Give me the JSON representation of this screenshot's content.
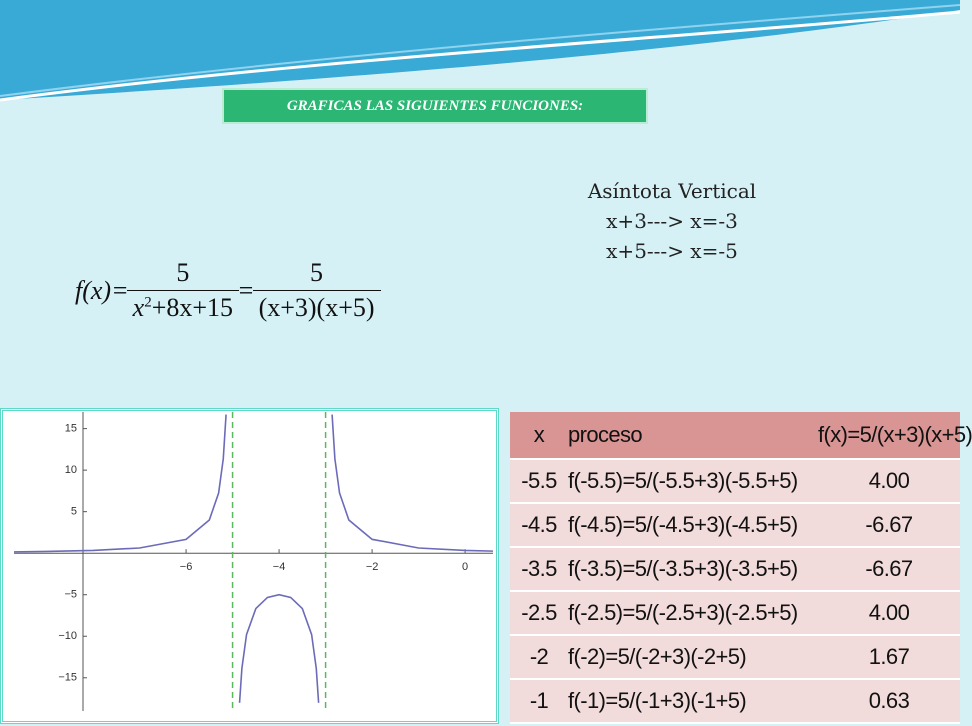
{
  "banner": "GRAFICAS LAS SIGUIENTES FUNCIONES:",
  "asymptote_note": {
    "title": "Asíntota Vertical",
    "lines": [
      "x+3---> x=-3",
      "x+5---> x=-5"
    ]
  },
  "formula": {
    "lhs": "f(x)",
    "equals": "=",
    "fraction1": {
      "numerator": "5",
      "denominator": [
        "x",
        "2",
        "+8x+15"
      ]
    },
    "fraction2": {
      "numerator": "5",
      "denominator": "(x+3)(x+5)"
    }
  },
  "chart_data": {
    "type": "line",
    "x": [
      -9.7,
      -9,
      -8,
      -7,
      -6,
      -5.5,
      -5.3,
      -5.2,
      -5.14,
      -5,
      -4.85,
      -4.8,
      -4.7,
      -4.5,
      -4.25,
      -4,
      -3.75,
      -3.5,
      -3.3,
      -3.2,
      -3.15,
      -3,
      -2.86,
      -2.8,
      -2.7,
      -2.5,
      -2,
      -1,
      0,
      0.6
    ],
    "series": [
      {
        "color": "#6b6bb8",
        "values": [
          0.159,
          0.208,
          0.333,
          0.625,
          1.667,
          4,
          7.246,
          11.36,
          16.69,
          null,
          -18.02,
          -13.89,
          -9.8,
          -6.67,
          -5.33,
          -5,
          -5.33,
          -6.67,
          -9.8,
          -13.89,
          -18.02,
          null,
          16.69,
          11.36,
          7.25,
          4,
          1.67,
          0.625,
          0.333,
          0.248
        ]
      }
    ],
    "asymptotes": [
      -5,
      -3
    ],
    "asymptote_color": "#5cb85c",
    "xlim": [
      -9.7,
      0.6
    ],
    "ylim": [
      -19,
      17
    ],
    "xticks": [
      {
        "value": -6,
        "label": "−6"
      },
      {
        "value": -4,
        "label": "−4"
      },
      {
        "value": -2,
        "label": "−2"
      },
      0
    ],
    "yticks": [
      15,
      10,
      5,
      {
        "value": -5,
        "label": "−5"
      },
      {
        "value": -10,
        "label": "−10"
      },
      {
        "value": -15,
        "label": "−15"
      }
    ]
  },
  "table": {
    "header": [
      "x",
      "proceso",
      "f(x)=5/(x+3)(x+5)"
    ],
    "rows": [
      [
        "-5.5",
        "f(-5.5)=5/(-5.5+3)(-5.5+5)",
        "4.00"
      ],
      [
        "-4.5",
        "f(-4.5)=5/(-4.5+3)(-4.5+5)",
        "-6.67"
      ],
      [
        "-3.5",
        "f(-3.5)=5/(-3.5+3)(-3.5+5)",
        "-6.67"
      ],
      [
        "-2.5",
        "f(-2.5)=5/(-2.5+3)(-2.5+5)",
        "4.00"
      ],
      [
        "-2",
        "f(-2)=5/(-2+3)(-2+5)",
        "1.67"
      ],
      [
        "-1",
        "f(-1)=5/(-1+3)(-1+5)",
        "0.63"
      ]
    ]
  }
}
